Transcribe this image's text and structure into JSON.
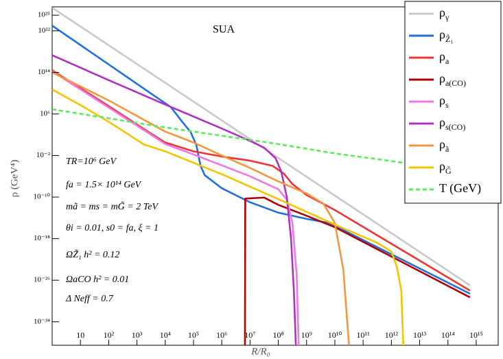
{
  "chart_data": {
    "type": "line",
    "title": "SUA",
    "x_label": "R/R₀",
    "y_label": "ρ (GeV⁴)",
    "log_x": true,
    "log_y": true,
    "xlim": [
      1,
      6000000000000000.0
    ],
    "ylim": [
      3e-39,
      4e+26
    ],
    "xticks": [
      10,
      {
        "value": 100,
        "label": "10²"
      },
      {
        "value": 1000.0,
        "label": "10³"
      },
      {
        "value": 10000.0,
        "label": "10⁴"
      },
      {
        "value": 100000.0,
        "label": "10⁵"
      },
      {
        "value": 1000000.0,
        "label": "10⁶"
      },
      {
        "value": 10000000.0,
        "label": "10⁷"
      },
      {
        "value": 100000000.0,
        "label": "10⁸"
      },
      {
        "value": 1000000000.0,
        "label": "10⁹"
      },
      {
        "value": 10000000000.0,
        "label": "10¹⁰"
      },
      {
        "value": 100000000000.0,
        "label": "10¹¹"
      },
      {
        "value": 1000000000000.0,
        "label": "10¹²"
      },
      {
        "value": 10000000000000.0,
        "label": "10¹³"
      },
      {
        "value": 100000000000000.0,
        "label": "10¹⁴"
      },
      {
        "value": 1000000000000000.0,
        "label": "10¹⁵"
      }
    ],
    "yticks": [
      {
        "value": 1e+25,
        "label": "10²⁵"
      },
      {
        "value": 1e+22,
        "label": "10²²"
      },
      {
        "value": 100000000000000.0,
        "label": "10¹⁴"
      },
      {
        "value": 1000000.0,
        "label": "10⁶"
      },
      {
        "value": 0.01,
        "label": "10⁻²"
      },
      {
        "value": 1e-10,
        "label": "10⁻¹⁰"
      },
      {
        "value": 1e-18,
        "label": "10⁻¹⁸"
      },
      {
        "value": 1e-26,
        "label": "10⁻²⁶"
      },
      {
        "value": 1e-34,
        "label": "10⁻³⁴"
      }
    ],
    "legend_position": "upper right",
    "annotations": [
      "TR=10⁶ GeV",
      "fa = 1.5× 10¹⁴ GeV",
      "mã = ms = mG̃ = 2 TeV",
      "θi = 0.01, s0 = fa, ξ = 1",
      "ΩZ̃₁ h² = 0.12",
      "ΩaCO h² = 0.01",
      "Δ Neff = 0.7"
    ],
    "series": [
      {
        "name": "ργ",
        "color": "#c8c8c8",
        "x": [
          1,
          603000000000000.0
        ],
        "values": [
          2.82e+26,
          1e-27
        ]
      },
      {
        "name": "ρZ̃₁",
        "color": "#1f6fdc",
        "x": [
          1,
          15800.0,
          39800.0,
          79400.0,
          126000.0,
          178000.0,
          251000.0,
          1000000.0,
          10000000.0,
          100000000.0,
          1000000000.0,
          6310000000.0,
          603000000000000.0
        ],
        "values": [
          1e+23,
          20000000.0,
          31600.0,
          316,
          1,
          0.0001,
          1.58e-06,
          5.01e-09,
          1e-11,
          1e-13,
          6.31e-15,
          1e-15,
          2.51e-29
        ]
      },
      {
        "name": "ρa",
        "color": "#ee3333",
        "x": [
          1,
          100,
          3160.0,
          10000.0,
          100000.0,
          1000000.0,
          10000000.0,
          63100000.0,
          158000000.0,
          316000000.0,
          1000000000.0,
          10000000000.0,
          603000000000000.0
        ],
        "values": [
          251000000000000.0,
          31600000.0,
          158,
          3.16,
          0.063,
          0.00631,
          0.001,
          0.0001,
          3.16e-06,
          3.16e-08,
          2.51e-10,
          3.16e-13,
          1e-28
        ]
      },
      {
        "name": "ρa(CO)",
        "color": "#b00000",
        "x": [
          6610000.0,
          6760000.0,
          31600000.0,
          100000000.0,
          1000000000.0,
          10000000000.0,
          603000000000000.0
        ],
        "values": [
          3e-39,
          5.01e-11,
          7.94e-11,
          3.16e-12,
          2.51e-14,
          1.58e-16,
          5.01e-30
        ]
      },
      {
        "name": "ρs",
        "color": "#ee77ee",
        "x": [
          1,
          3160.0,
          10000.0,
          100000.0,
          1000000.0,
          10000000.0,
          100000000.0,
          200000000.0,
          316000000.0,
          447000000.0,
          525000000.0
        ],
        "values": [
          158000000000000.0,
          100,
          1.58,
          0.0158,
          0.000126,
          1e-06,
          3.16e-09,
          3.16e-11,
          1e-15,
          1e-25,
          3e-39
        ]
      },
      {
        "name": "ρs(CO)",
        "color": "#b030c0",
        "x": [
          1,
          100,
          10000.0,
          100000.0,
          1000000.0,
          10000000.0,
          31600000.0,
          79400000.0,
          126000000.0,
          200000000.0,
          282000000.0,
          355000000.0,
          417000000.0
        ],
        "values": [
          2e+17,
          3160000000000.0,
          63100000.0,
          316000.0,
          1580.0,
          6.31,
          0.316,
          0.00316,
          1e-05,
          1e-10,
          1e-18,
          1e-28,
          3e-39
        ]
      },
      {
        "name": "ρã",
        "color": "#f5963c",
        "x": [
          1,
          100,
          10000.0,
          100000.0,
          1000000.0,
          10000000.0,
          100000000.0,
          1000000000.0,
          3980000000.0,
          10000000000.0,
          20000000000.0,
          31600000000.0
        ],
        "values": [
          100000000000000.0,
          398000000.0,
          398,
          3.16,
          0.01,
          3.98e-05,
          1e-07,
          5.01e-10,
          5.01e-12,
          1e-15,
          1e-24,
          3e-39
        ]
      },
      {
        "name": "ρG̃",
        "color": "#f5c400",
        "x": [
          1,
          10,
          100,
          1780.0,
          10000.0,
          1000000.0,
          100000000.0,
          10000000000.0,
          316000000000.0,
          1000000000000.0,
          1580000000000.0,
          2240000000000.0,
          2630000000000.0
        ],
        "values": [
          50100000000.0,
          50100000.0,
          31600.0,
          1.26,
          0.063,
          2.51e-06,
          3.98e-11,
          5.01e-16,
          1.58e-19,
          3.16e-21,
          3.16e-24,
          1e-28,
          3e-39
        ]
      },
      {
        "name": "T (GeV)",
        "color": "#55ee55",
        "dashed": true,
        "x": [
          1,
          10000.0,
          1000000.0,
          100000000.0,
          10000000000.0,
          5010000000000.0
        ],
        "values": [
          7940000.0,
          2510.0,
          63.1,
          1.58,
          0.025,
          0.000251
        ]
      }
    ]
  }
}
